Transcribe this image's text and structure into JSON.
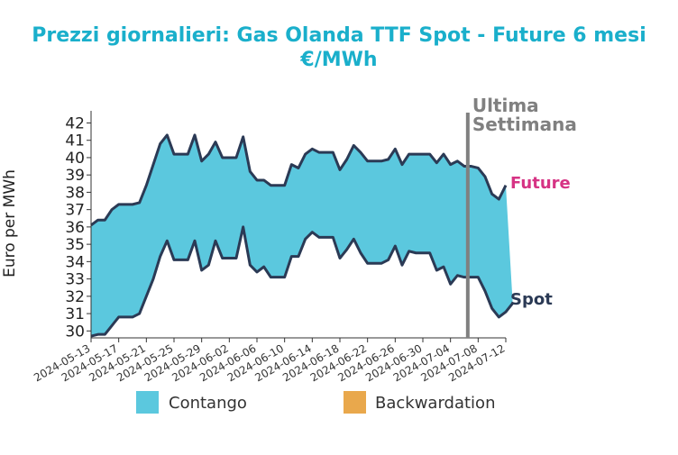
{
  "chart_data": {
    "type": "area",
    "title": "Prezzi giornalieri: Gas Olanda TTF Spot - Future 6 mesi",
    "subtitle": "€/MWh",
    "ylabel": "Euro per MWh",
    "xlabel": "",
    "ylim": [
      29.6,
      42.7
    ],
    "yticks": [
      30,
      31,
      32,
      33,
      34,
      35,
      36,
      37,
      38,
      39,
      40,
      41,
      42
    ],
    "xlim": [
      "2024-05-13",
      "2024-07-12"
    ],
    "xticks": [
      "2024-05-13",
      "2024-05-17",
      "2024-05-21",
      "2024-05-25",
      "2024-05-29",
      "2024-06-02",
      "2024-06-06",
      "2024-06-10",
      "2024-06-14",
      "2024-06-18",
      "2024-06-22",
      "2024-06-26",
      "2024-06-30",
      "2024-07-04",
      "2024-07-08",
      "2024-07-12"
    ],
    "series": [
      {
        "name": "Future",
        "color": "#d63384",
        "line_color": "#2b3a55",
        "points": [
          [
            "2024-05-13",
            36.1
          ],
          [
            "2024-05-14",
            36.4
          ],
          [
            "2024-05-15",
            36.4
          ],
          [
            "2024-05-16",
            37.0
          ],
          [
            "2024-05-17",
            37.3
          ],
          [
            "2024-05-18",
            37.3
          ],
          [
            "2024-05-19",
            37.3
          ],
          [
            "2024-05-20",
            37.4
          ],
          [
            "2024-05-21",
            38.4
          ],
          [
            "2024-05-22",
            39.6
          ],
          [
            "2024-05-23",
            40.8
          ],
          [
            "2024-05-24",
            41.3
          ],
          [
            "2024-05-25",
            40.2
          ],
          [
            "2024-05-26",
            40.2
          ],
          [
            "2024-05-27",
            40.2
          ],
          [
            "2024-05-28",
            41.3
          ],
          [
            "2024-05-29",
            39.8
          ],
          [
            "2024-05-30",
            40.2
          ],
          [
            "2024-05-31",
            40.9
          ],
          [
            "2024-06-01",
            40.0
          ],
          [
            "2024-06-02",
            40.0
          ],
          [
            "2024-06-03",
            40.0
          ],
          [
            "2024-06-04",
            41.2
          ],
          [
            "2024-06-05",
            39.2
          ],
          [
            "2024-06-06",
            38.7
          ],
          [
            "2024-06-07",
            38.7
          ],
          [
            "2024-06-08",
            38.4
          ],
          [
            "2024-06-09",
            38.4
          ],
          [
            "2024-06-10",
            38.4
          ],
          [
            "2024-06-11",
            39.6
          ],
          [
            "2024-06-12",
            39.4
          ],
          [
            "2024-06-13",
            40.2
          ],
          [
            "2024-06-14",
            40.5
          ],
          [
            "2024-06-15",
            40.3
          ],
          [
            "2024-06-16",
            40.3
          ],
          [
            "2024-06-17",
            40.3
          ],
          [
            "2024-06-18",
            39.3
          ],
          [
            "2024-06-19",
            39.9
          ],
          [
            "2024-06-20",
            40.7
          ],
          [
            "2024-06-21",
            40.3
          ],
          [
            "2024-06-22",
            39.8
          ],
          [
            "2024-06-23",
            39.8
          ],
          [
            "2024-06-24",
            39.8
          ],
          [
            "2024-06-25",
            39.9
          ],
          [
            "2024-06-26",
            40.5
          ],
          [
            "2024-06-27",
            39.6
          ],
          [
            "2024-06-28",
            40.2
          ],
          [
            "2024-06-29",
            40.2
          ],
          [
            "2024-06-30",
            40.2
          ],
          [
            "2024-07-01",
            40.2
          ],
          [
            "2024-07-02",
            39.7
          ],
          [
            "2024-07-03",
            40.2
          ],
          [
            "2024-07-04",
            39.6
          ],
          [
            "2024-07-05",
            39.8
          ],
          [
            "2024-07-06",
            39.5
          ],
          [
            "2024-07-07",
            39.5
          ],
          [
            "2024-07-08",
            39.4
          ],
          [
            "2024-07-09",
            38.9
          ],
          [
            "2024-07-10",
            37.9
          ],
          [
            "2024-07-11",
            37.6
          ],
          [
            "2024-07-12",
            38.4
          ]
        ]
      },
      {
        "name": "Spot",
        "color": "#2b3a55",
        "line_color": "#2b3a55",
        "points": [
          [
            "2024-05-13",
            29.7
          ],
          [
            "2024-05-14",
            29.8
          ],
          [
            "2024-05-15",
            29.8
          ],
          [
            "2024-05-16",
            30.3
          ],
          [
            "2024-05-17",
            30.8
          ],
          [
            "2024-05-18",
            30.8
          ],
          [
            "2024-05-19",
            30.8
          ],
          [
            "2024-05-20",
            31.0
          ],
          [
            "2024-05-21",
            32.0
          ],
          [
            "2024-05-22",
            33.0
          ],
          [
            "2024-05-23",
            34.3
          ],
          [
            "2024-05-24",
            35.2
          ],
          [
            "2024-05-25",
            34.1
          ],
          [
            "2024-05-26",
            34.1
          ],
          [
            "2024-05-27",
            34.1
          ],
          [
            "2024-05-28",
            35.2
          ],
          [
            "2024-05-29",
            33.5
          ],
          [
            "2024-05-30",
            33.8
          ],
          [
            "2024-05-31",
            35.2
          ],
          [
            "2024-06-01",
            34.2
          ],
          [
            "2024-06-02",
            34.2
          ],
          [
            "2024-06-03",
            34.2
          ],
          [
            "2024-06-04",
            36.0
          ],
          [
            "2024-06-05",
            33.8
          ],
          [
            "2024-06-06",
            33.4
          ],
          [
            "2024-06-07",
            33.7
          ],
          [
            "2024-06-08",
            33.1
          ],
          [
            "2024-06-09",
            33.1
          ],
          [
            "2024-06-10",
            33.1
          ],
          [
            "2024-06-11",
            34.3
          ],
          [
            "2024-06-12",
            34.3
          ],
          [
            "2024-06-13",
            35.3
          ],
          [
            "2024-06-14",
            35.7
          ],
          [
            "2024-06-15",
            35.4
          ],
          [
            "2024-06-16",
            35.4
          ],
          [
            "2024-06-17",
            35.4
          ],
          [
            "2024-06-18",
            34.2
          ],
          [
            "2024-06-19",
            34.7
          ],
          [
            "2024-06-20",
            35.3
          ],
          [
            "2024-06-21",
            34.5
          ],
          [
            "2024-06-22",
            33.9
          ],
          [
            "2024-06-23",
            33.9
          ],
          [
            "2024-06-24",
            33.9
          ],
          [
            "2024-06-25",
            34.1
          ],
          [
            "2024-06-26",
            34.9
          ],
          [
            "2024-06-27",
            33.8
          ],
          [
            "2024-06-28",
            34.6
          ],
          [
            "2024-06-29",
            34.5
          ],
          [
            "2024-06-30",
            34.5
          ],
          [
            "2024-07-01",
            34.5
          ],
          [
            "2024-07-02",
            33.5
          ],
          [
            "2024-07-03",
            33.7
          ],
          [
            "2024-07-04",
            32.7
          ],
          [
            "2024-07-05",
            33.2
          ],
          [
            "2024-07-06",
            33.1
          ],
          [
            "2024-07-07",
            33.1
          ],
          [
            "2024-07-08",
            33.1
          ],
          [
            "2024-07-09",
            32.3
          ],
          [
            "2024-07-10",
            31.3
          ],
          [
            "2024-07-11",
            30.8
          ],
          [
            "2024-07-12",
            31.1
          ],
          [
            "2024-07-13",
            31.6
          ]
        ]
      }
    ],
    "fill_colors": {
      "contango": "#5bc8de",
      "backwardation": "#e9a84c"
    },
    "annotation": {
      "text_line1": "Ultima",
      "text_line2": "Settimana",
      "date": "2024-07-06",
      "color": "#808080"
    },
    "legend": {
      "placement": "bottom",
      "items": [
        {
          "label": "Contango",
          "color": "#5bc8de"
        },
        {
          "label": "Backwardation",
          "color": "#e9a84c"
        }
      ]
    },
    "grid": false
  }
}
